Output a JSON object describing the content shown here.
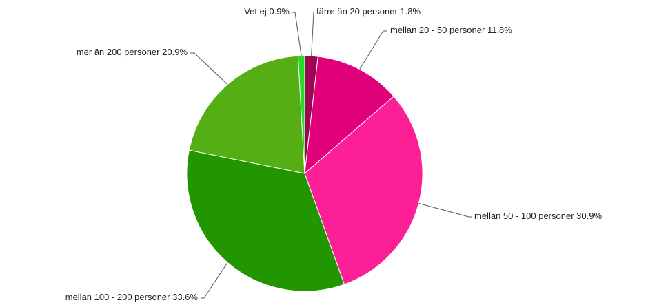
{
  "chart_data": {
    "type": "pie",
    "categories": [
      "färre än 20 personer",
      "mellan 20 - 50 personer",
      "mellan 50 - 100 personer",
      "mellan 100 - 200 personer",
      "mer än 200 personer",
      "Vet ej"
    ],
    "values": [
      1.8,
      11.8,
      30.9,
      33.6,
      20.9,
      0.9
    ],
    "value_labels": [
      "1.8%",
      "11.8%",
      "30.9%",
      "33.6%",
      "20.9%",
      "0.9%"
    ],
    "colors": [
      "#9c0654",
      "#e0007a",
      "#fc1f96",
      "#229600",
      "#55ae14",
      "#22dd22"
    ]
  }
}
